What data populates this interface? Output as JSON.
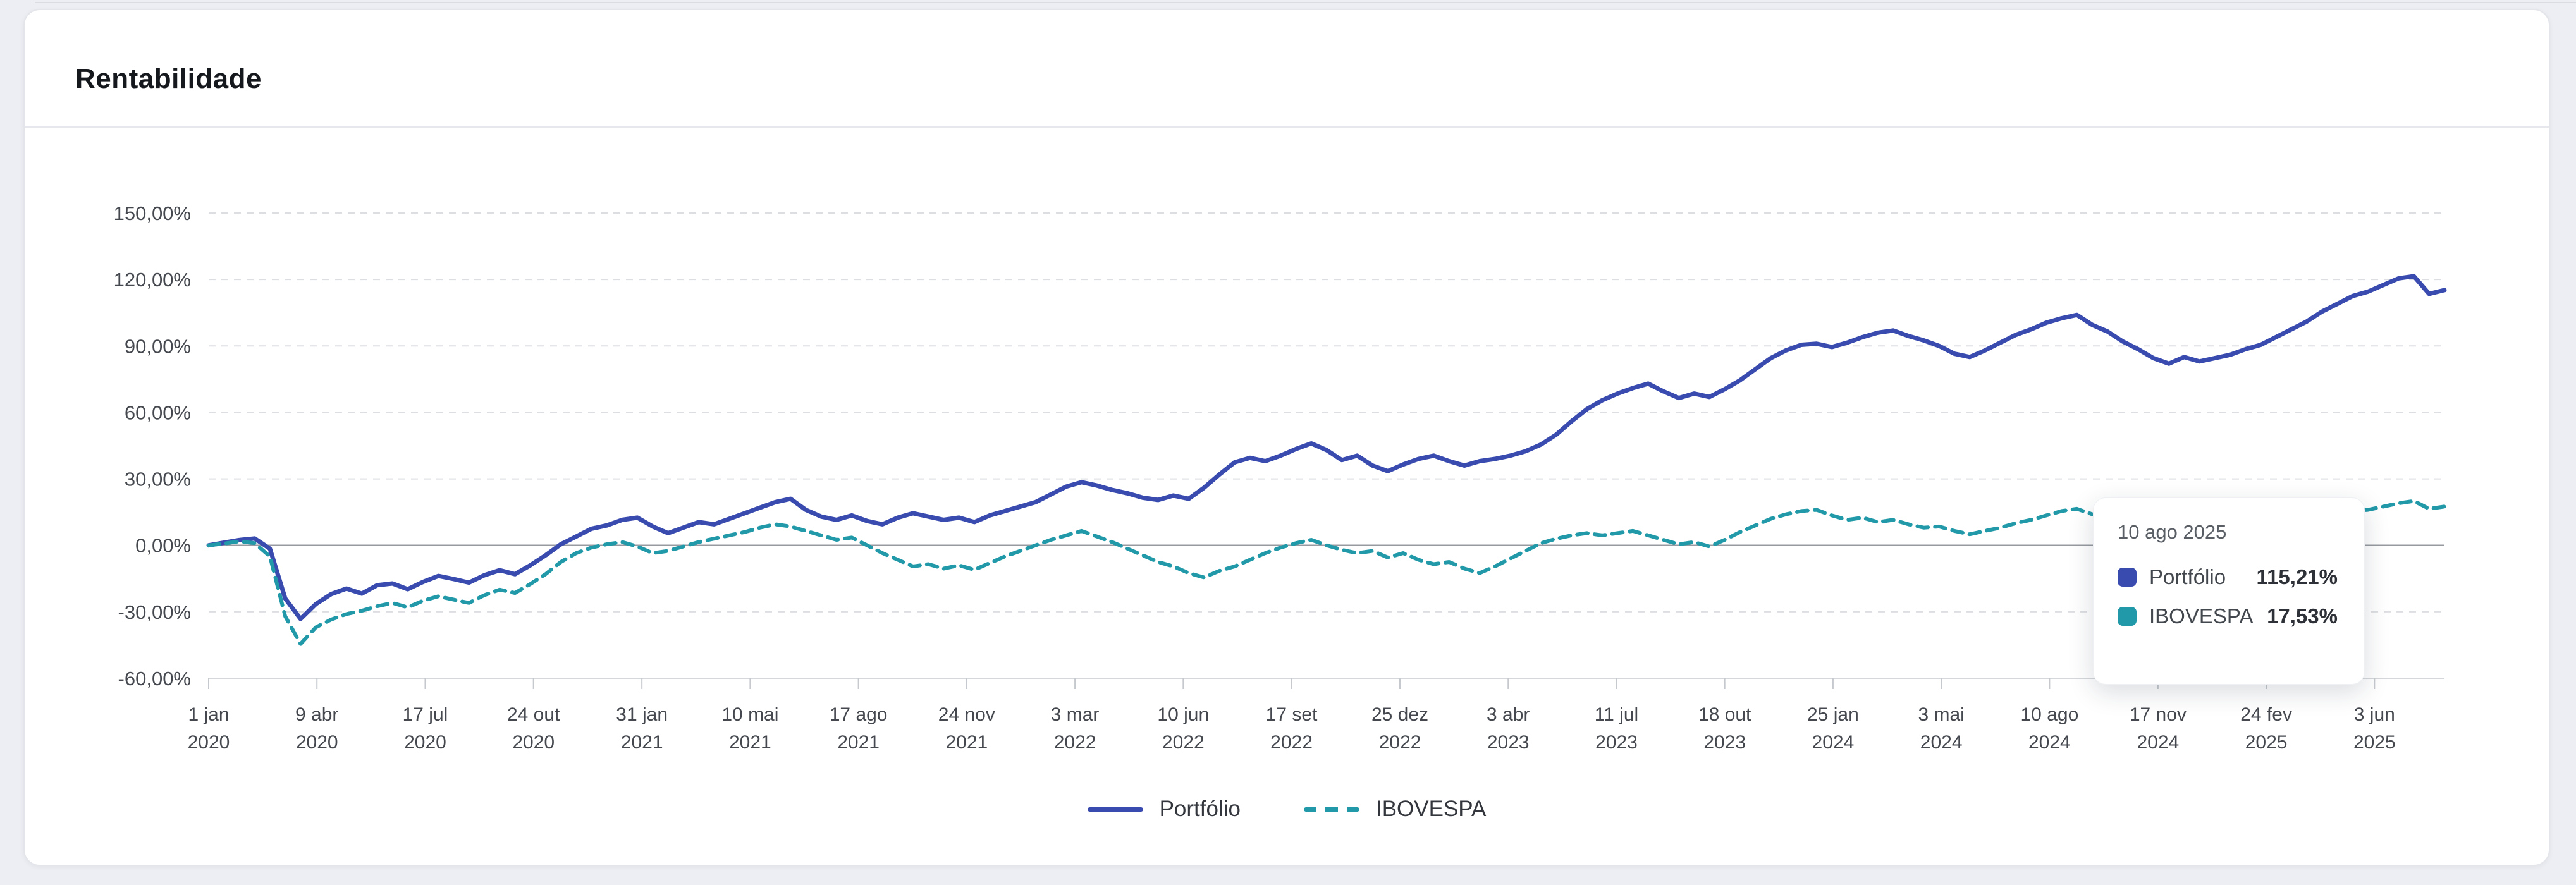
{
  "card": {
    "title": "Rentabilidade"
  },
  "colors": {
    "portfolio": "#3a4bb0",
    "ibovespa": "#2199a8",
    "grid_dashed": "#dcdee2",
    "grid_zero": "#979ba1",
    "axis_bottom": "#d4d7db",
    "tick": "#c6cacf",
    "axis_text": "#45494f"
  },
  "legend": [
    {
      "label": "Portfólio",
      "style": "solid",
      "color": "#3a4bb0"
    },
    {
      "label": "IBOVESPA",
      "style": "dashed",
      "color": "#2199a8"
    }
  ],
  "tooltip": {
    "date": "10 ago 2025",
    "rows": [
      {
        "name": "Portfólio",
        "value": "115,21%",
        "color": "#3a4bb0"
      },
      {
        "name": "IBOVESPA",
        "value": "17,53%",
        "color": "#2199a8"
      }
    ]
  },
  "chart_data": {
    "type": "line",
    "title": "Rentabilidade",
    "xlabel": "",
    "ylabel": "",
    "ylim": [
      -60,
      150
    ],
    "grid": "horizontal-dashed",
    "legend_position": "bottom-center",
    "x_unit": "weeks-biweekly-from-2020-01-01",
    "y_ticks": [
      {
        "label": "150,00%",
        "value": 150
      },
      {
        "label": "120,00%",
        "value": 120
      },
      {
        "label": "90,00%",
        "value": 90
      },
      {
        "label": "60,00%",
        "value": 60
      },
      {
        "label": "30,00%",
        "value": 30
      },
      {
        "label": "0,00%",
        "value": 0
      },
      {
        "label": "-30,00%",
        "value": -30
      },
      {
        "label": "-60,00%",
        "value": -60
      }
    ],
    "x_ticks": [
      {
        "line1": "1 jan",
        "line2": "2020",
        "index": 0
      },
      {
        "line1": "9 abr",
        "line2": "2020",
        "index": 7.07
      },
      {
        "line1": "17 jul",
        "line2": "2020",
        "index": 14.14
      },
      {
        "line1": "24 out",
        "line2": "2020",
        "index": 21.21
      },
      {
        "line1": "31 jan",
        "line2": "2021",
        "index": 28.29
      },
      {
        "line1": "10 mai",
        "line2": "2021",
        "index": 35.36
      },
      {
        "line1": "17 ago",
        "line2": "2021",
        "index": 42.43
      },
      {
        "line1": "24 nov",
        "line2": "2021",
        "index": 49.5
      },
      {
        "line1": "3 mar",
        "line2": "2022",
        "index": 56.57
      },
      {
        "line1": "10 jun",
        "line2": "2022",
        "index": 63.64
      },
      {
        "line1": "17 set",
        "line2": "2022",
        "index": 70.71
      },
      {
        "line1": "25 dez",
        "line2": "2022",
        "index": 77.79
      },
      {
        "line1": "3 abr",
        "line2": "2023",
        "index": 84.86
      },
      {
        "line1": "11 jul",
        "line2": "2023",
        "index": 91.93
      },
      {
        "line1": "18 out",
        "line2": "2023",
        "index": 99
      },
      {
        "line1": "25 jan",
        "line2": "2024",
        "index": 106.07
      },
      {
        "line1": "3 mai",
        "line2": "2024",
        "index": 113.14
      },
      {
        "line1": "10 ago",
        "line2": "2024",
        "index": 120.21
      },
      {
        "line1": "17 nov",
        "line2": "2024",
        "index": 127.29
      },
      {
        "line1": "24 fev",
        "line2": "2025",
        "index": 134.36
      },
      {
        "line1": "3 jun",
        "line2": "2025",
        "index": 141.43
      }
    ],
    "series": [
      {
        "name": "Portfólio",
        "color": "#3a4bb0",
        "dashed": false,
        "last_point": {
          "date": "10 ago 2025",
          "value_pct": 115.21
        },
        "values": [
          0,
          1.2,
          2.4,
          3.1,
          -1.5,
          -24,
          -33.2,
          -26.5,
          -22,
          -19.5,
          -21.8,
          -18,
          -17.2,
          -19.8,
          -16.5,
          -13.8,
          -15.2,
          -16.8,
          -13.5,
          -11.2,
          -13,
          -9,
          -4.5,
          0.5,
          4,
          7.5,
          9,
          11.5,
          12.5,
          8.5,
          5.5,
          8,
          10.5,
          9.5,
          12,
          14.5,
          17,
          19.5,
          21,
          16,
          13,
          11.5,
          13.5,
          11,
          9.5,
          12.5,
          14.5,
          13,
          11.5,
          12.5,
          10.5,
          13.5,
          15.5,
          17.5,
          19.5,
          23,
          26.5,
          28.5,
          27,
          25,
          23.5,
          21.5,
          20.5,
          22.5,
          21,
          26,
          32,
          37.5,
          39.5,
          38,
          40.5,
          43.5,
          46,
          43,
          38.5,
          40.5,
          36,
          33.5,
          36.5,
          39,
          40.5,
          38,
          36,
          38,
          39,
          40.5,
          42.5,
          45.5,
          50,
          56,
          61.5,
          65.5,
          68.5,
          71,
          73,
          69.5,
          66.5,
          68.5,
          67,
          70.5,
          74.5,
          79.5,
          84.5,
          88,
          90.5,
          91,
          89.5,
          91.5,
          94,
          96,
          97,
          94.5,
          92.5,
          90,
          86.5,
          85,
          88,
          91.5,
          95,
          97.5,
          100.5,
          102.5,
          104,
          99.5,
          96.5,
          92,
          88.5,
          84.5,
          82,
          85,
          83,
          84.5,
          86,
          88.5,
          90.5,
          94,
          97.5,
          101,
          105.5,
          109,
          112.5,
          114.5,
          117.5,
          120.5,
          121.5,
          113.5,
          115.21
        ]
      },
      {
        "name": "IBOVESPA",
        "color": "#2199a8",
        "dashed": true,
        "last_point": {
          "date": "10 ago 2025",
          "value_pct": 17.53
        },
        "values": [
          0,
          0.8,
          1.8,
          1,
          -5,
          -32,
          -44.5,
          -37,
          -33.5,
          -31,
          -29.5,
          -27.5,
          -26,
          -28,
          -25,
          -23,
          -24.5,
          -26,
          -22.5,
          -20,
          -21.5,
          -17.5,
          -13,
          -7.5,
          -3.5,
          -1,
          0.5,
          1.5,
          -0.5,
          -3.5,
          -2.5,
          -0.5,
          1.5,
          3,
          4.5,
          6,
          8,
          9.5,
          8.5,
          6.5,
          4.5,
          2.5,
          3.5,
          0,
          -3.5,
          -6.5,
          -9.5,
          -8.5,
          -10.5,
          -9,
          -11,
          -8,
          -5,
          -2.5,
          0,
          2.5,
          4.5,
          6.5,
          4,
          1.5,
          -1.5,
          -4.5,
          -7.5,
          -9.5,
          -12.5,
          -14.5,
          -11.5,
          -9.5,
          -6.5,
          -3.5,
          -1,
          1,
          2.5,
          0,
          -2,
          -3.5,
          -2.5,
          -5.5,
          -3.5,
          -6.5,
          -8.5,
          -7.5,
          -10.5,
          -12.5,
          -9.5,
          -6,
          -2.5,
          1,
          3,
          4.5,
          5.5,
          4.5,
          5.5,
          6.5,
          4.5,
          2.5,
          0.5,
          1.5,
          -0.5,
          2.5,
          6,
          9,
          12,
          14,
          15.5,
          16,
          13.5,
          11.5,
          12.5,
          10.5,
          11.5,
          9.5,
          8,
          8.5,
          6.5,
          5,
          6.5,
          8,
          10,
          11.5,
          13.5,
          15.5,
          16.5,
          14,
          12,
          10,
          8,
          6,
          4,
          2.5,
          3.5,
          5,
          6.5,
          7.5,
          8.5,
          10.5,
          12.5,
          14,
          15.5,
          16.5,
          15.5,
          16,
          17.5,
          19,
          20,
          16.5,
          17.53
        ]
      }
    ]
  }
}
